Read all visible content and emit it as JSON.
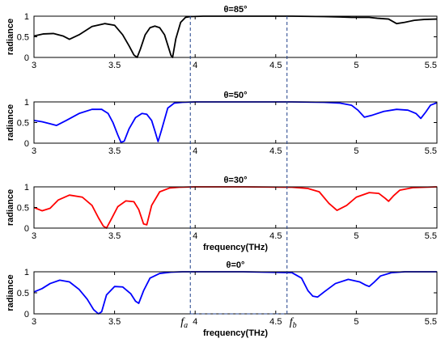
{
  "chart_data": {
    "type": "line",
    "x_domain": [
      3,
      5.5
    ],
    "y_domain": [
      0,
      1
    ],
    "x_ticks": [
      "3",
      "3.5",
      "4",
      "4.5",
      "5",
      "5.5"
    ],
    "y_ticks": [
      "0",
      "0.5",
      "1"
    ],
    "ylabel": "radiance",
    "markers": {
      "fa": {
        "x": 3.97,
        "label": "f",
        "sub": "a"
      },
      "fb": {
        "x": 4.57,
        "label": "f",
        "sub": "b"
      }
    },
    "panels": [
      {
        "title": "θ=85°",
        "xlabel": "",
        "color": "#000000",
        "x": [
          3.0,
          3.06,
          3.12,
          3.18,
          3.22,
          3.28,
          3.36,
          3.44,
          3.5,
          3.55,
          3.59,
          3.62,
          3.64,
          3.66,
          3.69,
          3.72,
          3.75,
          3.78,
          3.81,
          3.83,
          3.85,
          3.86,
          3.88,
          3.91,
          3.94,
          3.97,
          4.05,
          4.3,
          4.6,
          4.8,
          4.9,
          4.97,
          5.02,
          5.08,
          5.13,
          5.2,
          5.25,
          5.3,
          5.36,
          5.42,
          5.5
        ],
        "y": [
          0.52,
          0.57,
          0.58,
          0.52,
          0.44,
          0.55,
          0.75,
          0.82,
          0.78,
          0.55,
          0.28,
          0.06,
          0.0,
          0.2,
          0.55,
          0.72,
          0.76,
          0.72,
          0.55,
          0.3,
          0.05,
          0.0,
          0.45,
          0.85,
          0.97,
          0.99,
          1.0,
          1.0,
          1.0,
          0.99,
          0.98,
          0.97,
          0.97,
          0.97,
          0.95,
          0.93,
          0.82,
          0.85,
          0.9,
          0.92,
          0.93
        ]
      },
      {
        "title": "θ=50°",
        "xlabel": "",
        "color": "#0000ff",
        "x": [
          3.0,
          3.05,
          3.1,
          3.14,
          3.2,
          3.28,
          3.36,
          3.42,
          3.46,
          3.49,
          3.52,
          3.54,
          3.56,
          3.59,
          3.63,
          3.67,
          3.7,
          3.73,
          3.75,
          3.77,
          3.79,
          3.83,
          3.87,
          3.92,
          4.0,
          4.3,
          4.6,
          4.8,
          4.9,
          4.97,
          5.01,
          5.05,
          5.1,
          5.17,
          5.25,
          5.32,
          5.37,
          5.4,
          5.43,
          5.46,
          5.5
        ],
        "y": [
          0.55,
          0.52,
          0.47,
          0.43,
          0.55,
          0.72,
          0.82,
          0.82,
          0.72,
          0.5,
          0.2,
          0.02,
          0.05,
          0.35,
          0.62,
          0.72,
          0.7,
          0.55,
          0.3,
          0.04,
          0.3,
          0.85,
          0.97,
          0.99,
          1.0,
          1.0,
          1.0,
          0.99,
          0.97,
          0.92,
          0.8,
          0.63,
          0.68,
          0.77,
          0.82,
          0.8,
          0.72,
          0.6,
          0.75,
          0.92,
          0.98
        ]
      },
      {
        "title": "θ=30°",
        "xlabel": "frequency(THz)",
        "color": "#ff0000",
        "x": [
          3.0,
          3.05,
          3.1,
          3.15,
          3.22,
          3.3,
          3.36,
          3.4,
          3.43,
          3.45,
          3.48,
          3.52,
          3.57,
          3.62,
          3.65,
          3.68,
          3.7,
          3.73,
          3.78,
          3.84,
          3.9,
          4.0,
          4.3,
          4.6,
          4.7,
          4.77,
          4.83,
          4.88,
          4.94,
          5.0,
          5.08,
          5.14,
          5.18,
          5.2,
          5.23,
          5.27,
          5.35,
          5.5
        ],
        "y": [
          0.5,
          0.42,
          0.48,
          0.68,
          0.8,
          0.75,
          0.55,
          0.25,
          0.05,
          0.0,
          0.22,
          0.52,
          0.66,
          0.64,
          0.45,
          0.1,
          0.08,
          0.55,
          0.88,
          0.97,
          0.99,
          1.0,
          1.0,
          0.99,
          0.96,
          0.88,
          0.6,
          0.43,
          0.55,
          0.75,
          0.86,
          0.84,
          0.72,
          0.65,
          0.78,
          0.92,
          0.98,
          1.0
        ]
      },
      {
        "title": "θ=0°",
        "xlabel": "frequency(THz)",
        "color": "#0000ff",
        "x": [
          3.0,
          3.05,
          3.1,
          3.16,
          3.22,
          3.28,
          3.33,
          3.37,
          3.4,
          3.42,
          3.45,
          3.5,
          3.55,
          3.6,
          3.63,
          3.65,
          3.68,
          3.72,
          3.78,
          3.85,
          3.92,
          4.0,
          4.3,
          4.6,
          4.66,
          4.7,
          4.73,
          4.76,
          4.8,
          4.87,
          4.95,
          5.02,
          5.06,
          5.08,
          5.11,
          5.15,
          5.22,
          5.3,
          5.5
        ],
        "y": [
          0.52,
          0.6,
          0.72,
          0.8,
          0.76,
          0.58,
          0.35,
          0.1,
          0.0,
          0.05,
          0.45,
          0.65,
          0.64,
          0.48,
          0.3,
          0.25,
          0.55,
          0.85,
          0.96,
          0.99,
          1.0,
          1.0,
          1.0,
          0.98,
          0.85,
          0.55,
          0.42,
          0.4,
          0.52,
          0.72,
          0.82,
          0.76,
          0.68,
          0.65,
          0.75,
          0.9,
          0.98,
          1.0,
          1.0
        ]
      }
    ]
  }
}
